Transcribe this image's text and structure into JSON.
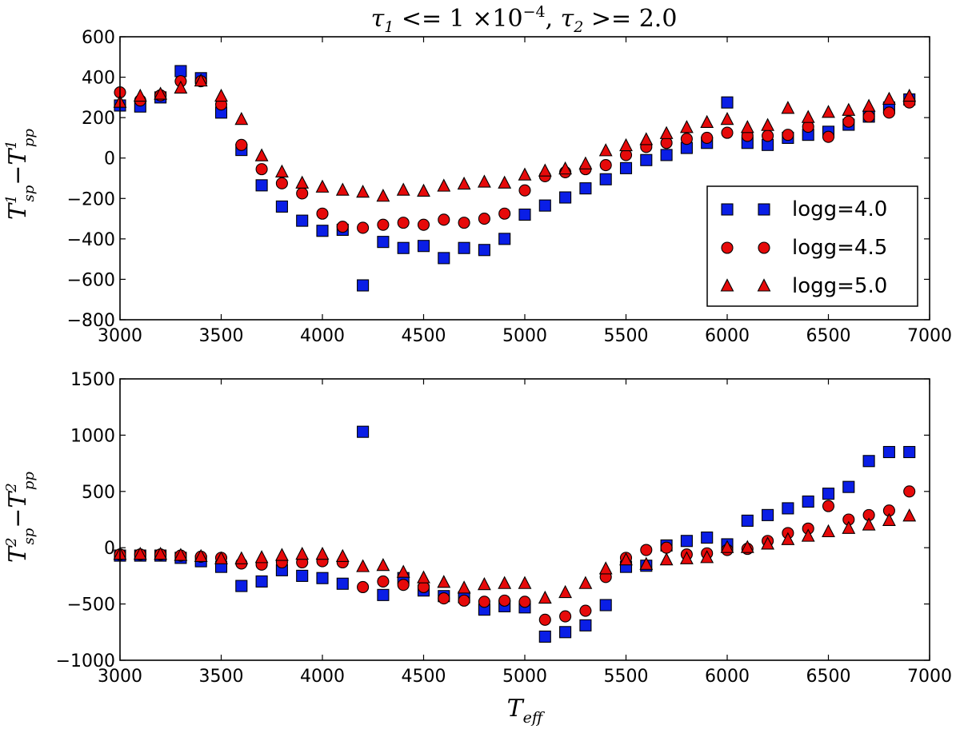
{
  "title": "τ₁ <= 1 ×10⁻⁴ ,  τ₂ >= 2.0",
  "title_parts": {
    "tau1": "τ",
    "sub1": "1",
    "op1": " <= 1 ×10",
    "exp1": "−4",
    "comma": ",  ",
    "tau2": "τ",
    "sub2": "2",
    "op2": " >= 2.0"
  },
  "xlabel": {
    "base": "T",
    "sub": "eff"
  },
  "colors": {
    "logg40": "#0a1ee6",
    "logg45": "#e60a0a",
    "logg50": "#e60a0a"
  },
  "legend": [
    "logg=4.0",
    "logg=4.5",
    "logg=5.0"
  ],
  "chart_data": [
    {
      "type": "scatter",
      "ylabel": {
        "base": "T",
        "sup_a": "1",
        "sub_a": "sp",
        "minus": "−",
        "sup_b": "1",
        "sub_b": "pp"
      },
      "xlim": [
        3000,
        7000
      ],
      "ylim": [
        -800,
        600
      ],
      "xticks": [
        3000,
        3500,
        4000,
        4500,
        5000,
        5500,
        6000,
        6500,
        7000
      ],
      "yticks": [
        -800,
        -600,
        -400,
        -200,
        0,
        200,
        400,
        600
      ],
      "x": [
        3000,
        3100,
        3200,
        3300,
        3400,
        3500,
        3600,
        3700,
        3800,
        3900,
        4000,
        4100,
        4200,
        4300,
        4400,
        4500,
        4600,
        4700,
        4800,
        4900,
        5000,
        5100,
        5200,
        5300,
        5400,
        5500,
        5600,
        5700,
        5800,
        5900,
        6000,
        6100,
        6200,
        6300,
        6400,
        6500,
        6600,
        6700,
        6800,
        6900
      ],
      "series": [
        {
          "name": "logg=4.0",
          "marker": "square",
          "values": [
            260,
            255,
            300,
            430,
            395,
            225,
            40,
            -135,
            -240,
            -310,
            -360,
            -355,
            -630,
            -415,
            -445,
            -435,
            -495,
            -445,
            -455,
            -400,
            -280,
            -235,
            -195,
            -150,
            -105,
            -50,
            -10,
            15,
            50,
            75,
            275,
            75,
            65,
            100,
            115,
            130,
            165,
            205,
            250,
            290
          ]
        },
        {
          "name": "logg=4.5",
          "marker": "circle",
          "values": [
            325,
            285,
            310,
            380,
            380,
            265,
            65,
            -55,
            -125,
            -175,
            -275,
            -340,
            -345,
            -330,
            -320,
            -330,
            -305,
            -320,
            -300,
            -275,
            -160,
            -90,
            -70,
            -55,
            -35,
            15,
            55,
            75,
            95,
            100,
            125,
            110,
            110,
            115,
            155,
            105,
            180,
            205,
            225,
            275
          ]
        },
        {
          "name": "logg=5.0",
          "marker": "triangle",
          "values": [
            275,
            305,
            315,
            345,
            380,
            305,
            190,
            10,
            -70,
            -125,
            -145,
            -160,
            -170,
            -190,
            -160,
            -165,
            -140,
            -130,
            -120,
            -125,
            -85,
            -65,
            -55,
            -30,
            35,
            60,
            90,
            120,
            150,
            175,
            190,
            150,
            160,
            245,
            200,
            225,
            235,
            255,
            290,
            305
          ]
        }
      ]
    },
    {
      "type": "scatter",
      "ylabel": {
        "base": "T",
        "sup_a": "2",
        "sub_a": "sp",
        "minus": "−",
        "sup_b": "2",
        "sub_b": "pp"
      },
      "xlim": [
        3000,
        7000
      ],
      "ylim": [
        -1000,
        1500
      ],
      "xticks": [
        3000,
        3500,
        4000,
        4500,
        5000,
        5500,
        6000,
        6500,
        7000
      ],
      "yticks": [
        -1000,
        -500,
        0,
        500,
        1000,
        1500
      ],
      "x": [
        3000,
        3100,
        3200,
        3300,
        3400,
        3500,
        3600,
        3700,
        3800,
        3900,
        4000,
        4100,
        4200,
        4300,
        4400,
        4500,
        4600,
        4700,
        4800,
        4900,
        5000,
        5100,
        5200,
        5300,
        5400,
        5500,
        5600,
        5700,
        5800,
        5900,
        6000,
        6100,
        6200,
        6300,
        6400,
        6500,
        6600,
        6700,
        6800,
        6900
      ],
      "series": [
        {
          "name": "logg=4.0",
          "marker": "square",
          "values": [
            -70,
            -70,
            -70,
            -90,
            -120,
            -170,
            -340,
            -300,
            -200,
            -250,
            -270,
            -320,
            1030,
            -420,
            -270,
            -380,
            -430,
            -440,
            -550,
            -520,
            -530,
            -790,
            -750,
            -690,
            -510,
            -170,
            -160,
            20,
            60,
            90,
            30,
            240,
            290,
            350,
            410,
            480,
            540,
            770,
            850,
            850
          ]
        },
        {
          "name": "logg=4.5",
          "marker": "circle",
          "values": [
            -60,
            -60,
            -60,
            -70,
            -80,
            -90,
            -140,
            -150,
            -130,
            -130,
            -120,
            -130,
            -350,
            -300,
            -330,
            -350,
            -450,
            -470,
            -480,
            -470,
            -480,
            -640,
            -610,
            -560,
            -260,
            -90,
            -20,
            0,
            -60,
            -50,
            -20,
            -10,
            60,
            130,
            170,
            370,
            250,
            290,
            330,
            500
          ]
        },
        {
          "name": "logg=5.0",
          "marker": "triangle",
          "values": [
            -60,
            -60,
            -60,
            -70,
            -80,
            -100,
            -100,
            -90,
            -70,
            -60,
            -60,
            -80,
            -170,
            -160,
            -220,
            -270,
            -310,
            -360,
            -330,
            -320,
            -320,
            -450,
            -400,
            -320,
            -190,
            -110,
            -150,
            -110,
            -100,
            -90,
            0,
            0,
            30,
            70,
            100,
            140,
            170,
            200,
            240,
            280
          ]
        }
      ]
    }
  ]
}
